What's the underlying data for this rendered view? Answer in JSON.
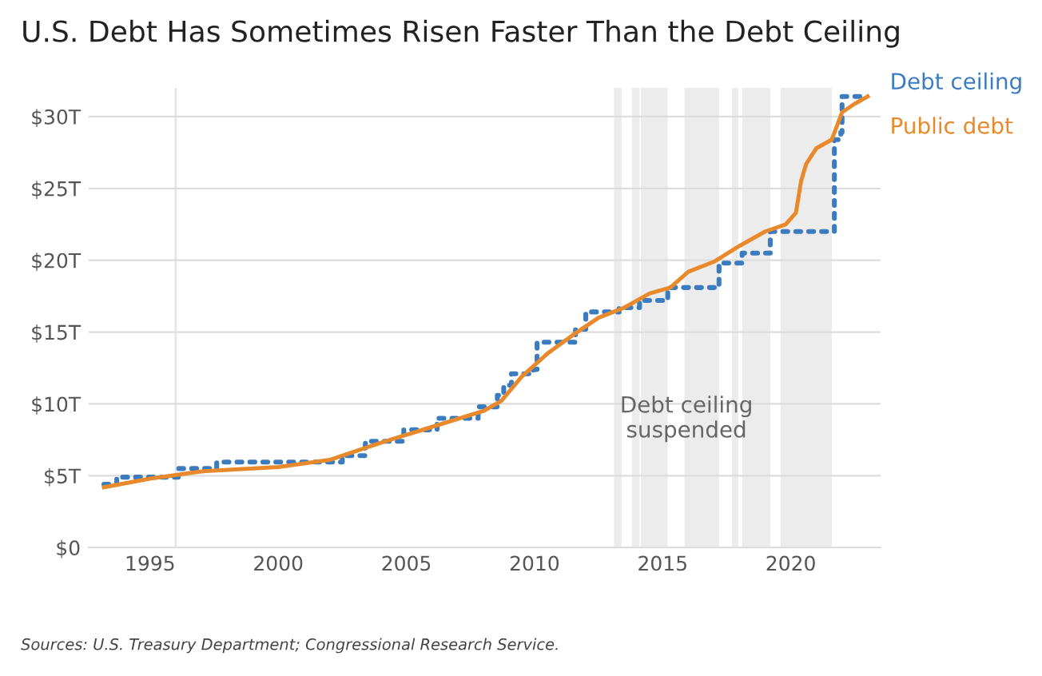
{
  "chart_data": {
    "type": "line",
    "title": "U.S. Debt Has Sometimes Risen Faster Than the Debt Ceiling",
    "annotations": [
      "Debt ceiling\nsuspended",
      "Sources: U.S. Treasury Department; Congressional Research Service."
    ],
    "series": [
      {
        "name": "Debt ceiling",
        "type": "step",
        "color": "#3b7cc0",
        "line_style": "dotted",
        "x": [
          1993.2,
          1993.7,
          1996.1,
          1997.6,
          2002.5,
          2003.4,
          2004.9,
          2006.2,
          2007.8,
          2008.55,
          2008.8,
          2009.1,
          2009.95,
          2010.1,
          2011.6,
          2012.0,
          2013.3,
          2014.1,
          2015.2,
          2017.2,
          2018.1,
          2019.2,
          2021.7,
          2021.95,
          2022.0,
          2023.0
        ],
        "values": [
          4.4,
          4.9,
          5.5,
          5.95,
          6.4,
          7.4,
          8.2,
          9.0,
          9.8,
          10.6,
          11.3,
          12.1,
          12.4,
          14.3,
          15.2,
          16.4,
          16.7,
          17.2,
          18.1,
          19.8,
          20.5,
          22.0,
          28.4,
          28.9,
          31.4,
          31.4
        ]
      },
      {
        "name": "Public debt",
        "color": "#e8892b",
        "line_style": "solid",
        "x": [
          1993.2,
          1995,
          1997,
          2000,
          2002,
          2004,
          2006,
          2008,
          2008.7,
          2009.5,
          2010.5,
          2011.5,
          2012.5,
          2013.5,
          2014.5,
          2015.3,
          2016,
          2017,
          2018,
          2019,
          2019.8,
          2020.2,
          2020.4,
          2020.6,
          2021.0,
          2021.6,
          2022.0,
          2022.5,
          2023.0
        ],
        "values": [
          4.2,
          4.8,
          5.3,
          5.6,
          6.1,
          7.3,
          8.4,
          9.5,
          10.2,
          11.9,
          13.5,
          14.8,
          16.0,
          16.7,
          17.7,
          18.1,
          19.2,
          19.9,
          21.0,
          22.0,
          22.5,
          23.3,
          25.5,
          26.7,
          27.8,
          28.4,
          30.3,
          30.9,
          31.4
        ]
      }
    ],
    "bands": [
      {
        "axis": "x",
        "from": 2013.1,
        "to": 2013.4,
        "color": "#ececec"
      },
      {
        "axis": "x",
        "from": 2013.8,
        "to": 2014.1,
        "color": "#ececec"
      },
      {
        "axis": "x",
        "from": 2014.15,
        "to": 2015.2,
        "color": "#ececec"
      },
      {
        "axis": "x",
        "from": 2015.85,
        "to": 2017.2,
        "color": "#ececec"
      },
      {
        "axis": "x",
        "from": 2017.7,
        "to": 2017.95,
        "color": "#ececec"
      },
      {
        "axis": "x",
        "from": 2018.1,
        "to": 2019.2,
        "color": "#ececec"
      },
      {
        "axis": "x",
        "from": 2019.6,
        "to": 2021.6,
        "color": "#ececec"
      }
    ],
    "ref_lines": [
      {
        "axis": "x",
        "value": 1996,
        "label": null,
        "color": "#e6e6e6"
      }
    ],
    "xlim": [
      1992.6,
      2023.5
    ],
    "xticks": [
      1995,
      2000,
      2005,
      2010,
      2015,
      2020
    ],
    "ylim": [
      0,
      32
    ],
    "yticks": [
      {
        "value": 0,
        "label": "$0"
      },
      {
        "value": 5,
        "label": "$5T"
      },
      {
        "value": 10,
        "label": "$10T"
      },
      {
        "value": 15,
        "label": "$15T"
      },
      {
        "value": 20,
        "label": "$20T"
      },
      {
        "value": 25,
        "label": "$25T"
      },
      {
        "value": 30,
        "label": "$30T"
      }
    ],
    "grid": "y",
    "legend": false
  }
}
